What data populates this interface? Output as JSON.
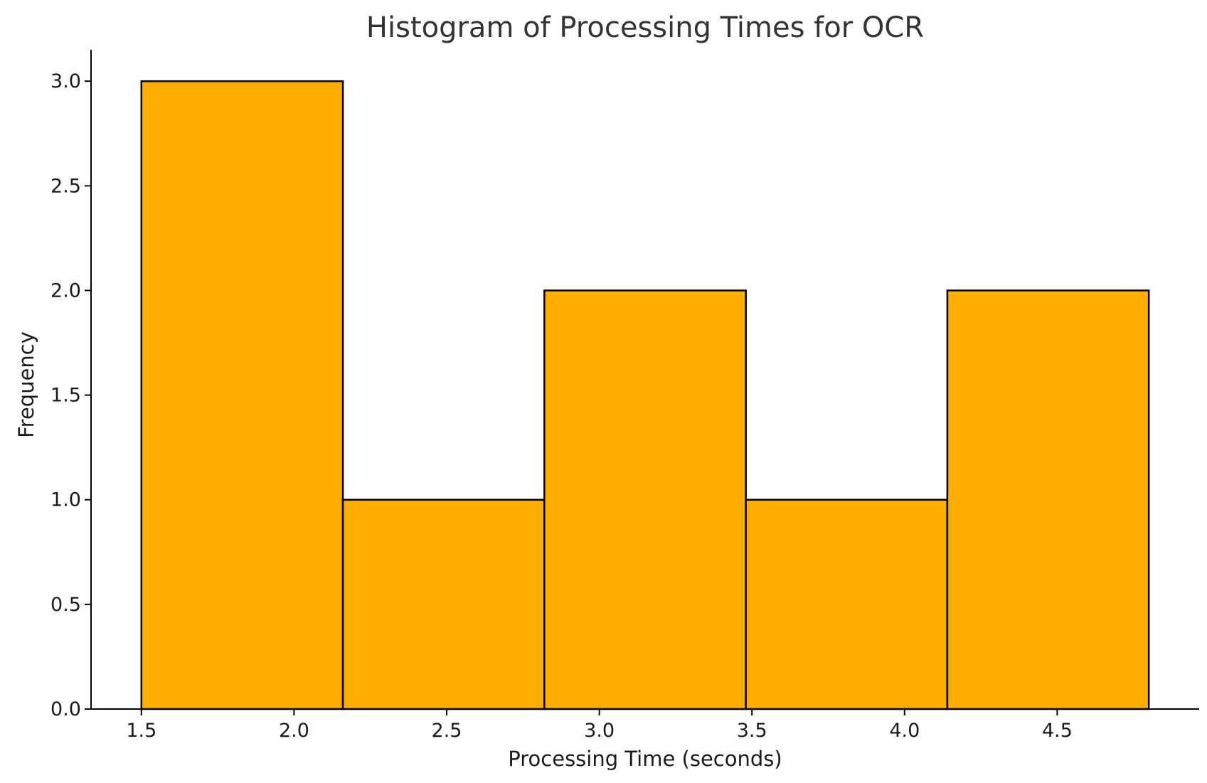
{
  "chart_data": {
    "type": "bar",
    "title": "Histogram of Processing Times for OCR",
    "xlabel": "Processing Time (seconds)",
    "ylabel": "Frequency",
    "bins": [
      {
        "start": 1.5,
        "end": 2.16,
        "count": 3
      },
      {
        "start": 2.16,
        "end": 2.82,
        "count": 1
      },
      {
        "start": 2.82,
        "end": 3.48,
        "count": 2
      },
      {
        "start": 3.48,
        "end": 4.14,
        "count": 1
      },
      {
        "start": 4.14,
        "end": 4.8,
        "count": 2
      }
    ],
    "xticks": [
      "1.5",
      "2.0",
      "2.5",
      "3.0",
      "3.5",
      "4.0",
      "4.5"
    ],
    "yticks": [
      "0.0",
      "0.5",
      "1.0",
      "1.5",
      "2.0",
      "2.5",
      "3.0"
    ],
    "xlim": [
      1.335,
      4.965
    ],
    "ylim": [
      0,
      3.15
    ],
    "grid": false,
    "bar_color": "#ffae00",
    "edge_color": "#000000"
  }
}
